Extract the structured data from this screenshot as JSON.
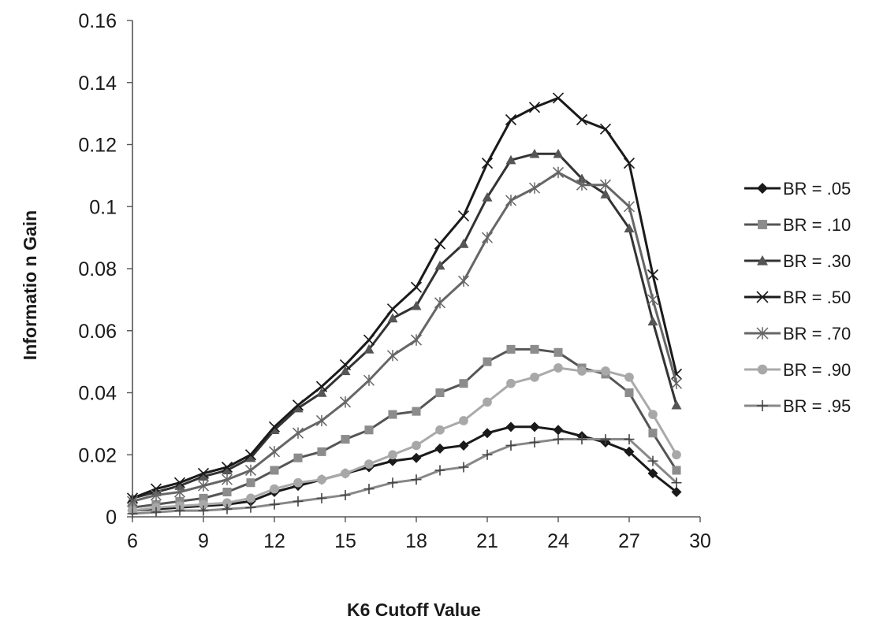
{
  "chart_data": {
    "type": "line",
    "xlabel": "K6 Cutoff Value",
    "ylabel": "Informatio n Gain",
    "xlim": [
      6,
      30
    ],
    "ylim": [
      0,
      0.16
    ],
    "xticks": [
      "6",
      "9",
      "12",
      "15",
      "18",
      "21",
      "24",
      "27",
      "30"
    ],
    "yticks": [
      "0",
      "0.02",
      "0.04",
      "0.06",
      "0.08",
      "0.1",
      "0.12",
      "0.14",
      "0.16"
    ],
    "grid": false,
    "legend_position": "right",
    "x": [
      6,
      7,
      8,
      9,
      10,
      11,
      12,
      13,
      14,
      15,
      16,
      17,
      18,
      19,
      20,
      21,
      22,
      23,
      24,
      25,
      26,
      27,
      28,
      29
    ],
    "series": [
      {
        "name": "BR = .05",
        "marker": "diamond",
        "color": "#1a1a1a",
        "markerColor": "#1a1a1a",
        "values": [
          0.002,
          0.0025,
          0.003,
          0.0035,
          0.004,
          0.005,
          0.008,
          0.01,
          0.012,
          0.014,
          0.016,
          0.018,
          0.019,
          0.022,
          0.023,
          0.027,
          0.029,
          0.029,
          0.028,
          0.026,
          0.024,
          0.021,
          0.014,
          0.008
        ]
      },
      {
        "name": "BR = .10",
        "marker": "square",
        "color": "#555555",
        "markerColor": "#8c8c8c",
        "values": [
          0.003,
          0.004,
          0.005,
          0.006,
          0.008,
          0.011,
          0.015,
          0.019,
          0.021,
          0.025,
          0.028,
          0.033,
          0.034,
          0.04,
          0.043,
          0.05,
          0.054,
          0.054,
          0.053,
          0.048,
          0.046,
          0.04,
          0.027,
          0.015
        ]
      },
      {
        "name": "BR = .30",
        "marker": "triangle",
        "color": "#333333",
        "markerColor": "#555555",
        "values": [
          0.006,
          0.008,
          0.01,
          0.013,
          0.015,
          0.019,
          0.028,
          0.035,
          0.04,
          0.047,
          0.054,
          0.064,
          0.068,
          0.081,
          0.088,
          0.103,
          0.115,
          0.117,
          0.117,
          0.109,
          0.104,
          0.093,
          0.063,
          0.036
        ]
      },
      {
        "name": "BR = .50",
        "marker": "x",
        "color": "#1a1a1a",
        "markerColor": "#1a1a1a",
        "values": [
          0.006,
          0.009,
          0.011,
          0.014,
          0.016,
          0.02,
          0.029,
          0.036,
          0.042,
          0.049,
          0.057,
          0.067,
          0.074,
          0.088,
          0.097,
          0.114,
          0.128,
          0.132,
          0.135,
          0.128,
          0.125,
          0.114,
          0.078,
          0.046
        ]
      },
      {
        "name": "BR = .70",
        "marker": "asterisk",
        "color": "#666666",
        "markerColor": "#666666",
        "values": [
          0.005,
          0.007,
          0.008,
          0.01,
          0.012,
          0.015,
          0.021,
          0.027,
          0.031,
          0.037,
          0.044,
          0.052,
          0.057,
          0.069,
          0.076,
          0.09,
          0.102,
          0.106,
          0.111,
          0.107,
          0.107,
          0.1,
          0.07,
          0.043
        ]
      },
      {
        "name": "BR = .90",
        "marker": "circle",
        "color": "#aaaaaa",
        "markerColor": "#a8a8a8",
        "values": [
          0.002,
          0.003,
          0.0035,
          0.004,
          0.0045,
          0.006,
          0.009,
          0.011,
          0.012,
          0.014,
          0.017,
          0.02,
          0.023,
          0.028,
          0.031,
          0.037,
          0.043,
          0.045,
          0.048,
          0.047,
          0.047,
          0.045,
          0.033,
          0.02
        ]
      },
      {
        "name": "BR = .95",
        "marker": "plus",
        "color": "#888888",
        "markerColor": "#444444",
        "values": [
          0.001,
          0.0015,
          0.002,
          0.002,
          0.0025,
          0.003,
          0.004,
          0.005,
          0.006,
          0.007,
          0.009,
          0.011,
          0.012,
          0.015,
          0.016,
          0.02,
          0.023,
          0.024,
          0.025,
          0.025,
          0.025,
          0.025,
          0.018,
          0.011
        ]
      }
    ]
  }
}
